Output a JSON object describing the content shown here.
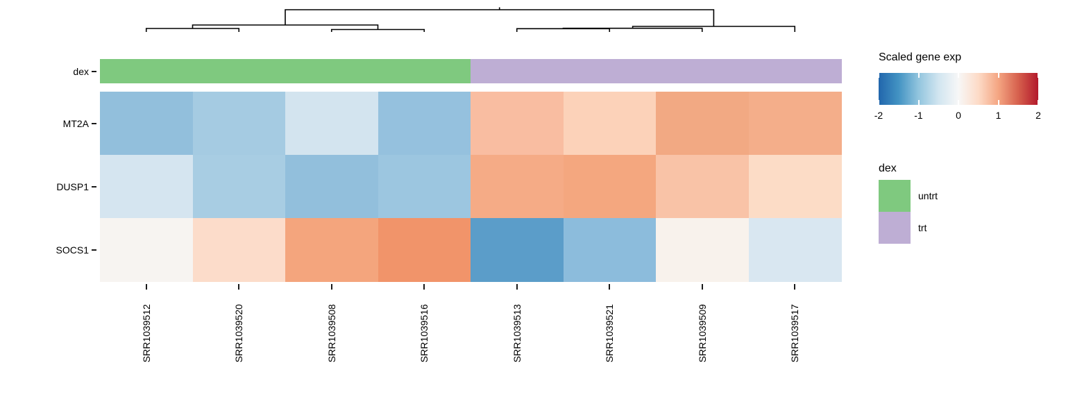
{
  "figure": {
    "background": "#ffffff"
  },
  "chart_data": {
    "type": "heatmap",
    "rows": [
      "MT2A",
      "DUSP1",
      "SOCS1"
    ],
    "columns": [
      "SRR1039512",
      "SRR1039520",
      "SRR1039508",
      "SRR1039516",
      "SRR1039513",
      "SRR1039521",
      "SRR1039509",
      "SRR1039517"
    ],
    "values": [
      [
        -1.0,
        -0.85,
        -0.5,
        -0.95,
        0.75,
        0.6,
        1.0,
        0.95
      ],
      [
        -0.5,
        -0.8,
        -1.0,
        -0.9,
        1.0,
        1.05,
        0.7,
        0.5
      ],
      [
        0.03,
        0.48,
        1.02,
        1.2,
        -1.35,
        -1.0,
        0.05,
        -0.45
      ]
    ],
    "cell_colors": [
      [
        "#92bfdc",
        "#a5cbe2",
        "#d3e4ef",
        "#95c1de",
        "#f9bda1",
        "#fcd2b9",
        "#f2a983",
        "#f4ae8a"
      ],
      [
        "#d5e5f0",
        "#a8cde3",
        "#92bfdc",
        "#9cc6e0",
        "#f5ab86",
        "#f4a77f",
        "#f9c3a7",
        "#fcdcc6"
      ],
      [
        "#f7f4f1",
        "#fcdcca",
        "#f4a57d",
        "#f1946a",
        "#5b9dc9",
        "#8cbcdc",
        "#f8f2ec",
        "#d9e7f1"
      ]
    ],
    "column_annotation": {
      "name": "dex",
      "values": [
        "untrt",
        "untrt",
        "untrt",
        "untrt",
        "trt",
        "trt",
        "trt",
        "trt"
      ],
      "colors": {
        "untrt": "#7FC97F",
        "trt": "#BEAED4"
      }
    },
    "colormap": {
      "domain": [
        -2,
        2
      ],
      "stops": [
        "#2166AC",
        "#4393C3",
        "#92C5DE",
        "#D1E5F0",
        "#F7F7F7",
        "#FDDBC7",
        "#F4A582",
        "#D6604D",
        "#B2182B"
      ]
    },
    "column_dendrogram_segments": [
      "M411,36 L411,14 L1028.4,14 L1028.4,38",
      "M719.7,14 L719.7,10.5",
      "M277.5,41 L277.5,36 L544.5,36 L544.5,42.5",
      "M210.75,46 L210.75,41 L344.25,41 L344.25,46",
      "M477.75,46 L477.75,42.5 L611.25,42.5 L611.25,46",
      "M911.6,40.7 L911.6,38 L1145.25,38 L1145.25,46",
      "M811.5,41.3 L811.5,40.7 L1011.75,40.7 L1011.75,46",
      "M744.75,46 L744.75,41.3 L878.25,41.3 L878.25,46"
    ],
    "legend_position": "right",
    "grid": false
  },
  "heatmap_labels": {
    "row_annotation_label": "dex"
  },
  "legend_scale": {
    "title": "Scaled gene exp",
    "ticks": [
      "-2",
      "-1",
      "0",
      "1",
      "2"
    ]
  },
  "legend_dex": {
    "title": "dex",
    "items": [
      {
        "label": "untrt",
        "color": "#7FC97F"
      },
      {
        "label": "trt",
        "color": "#BEAED4"
      }
    ]
  }
}
